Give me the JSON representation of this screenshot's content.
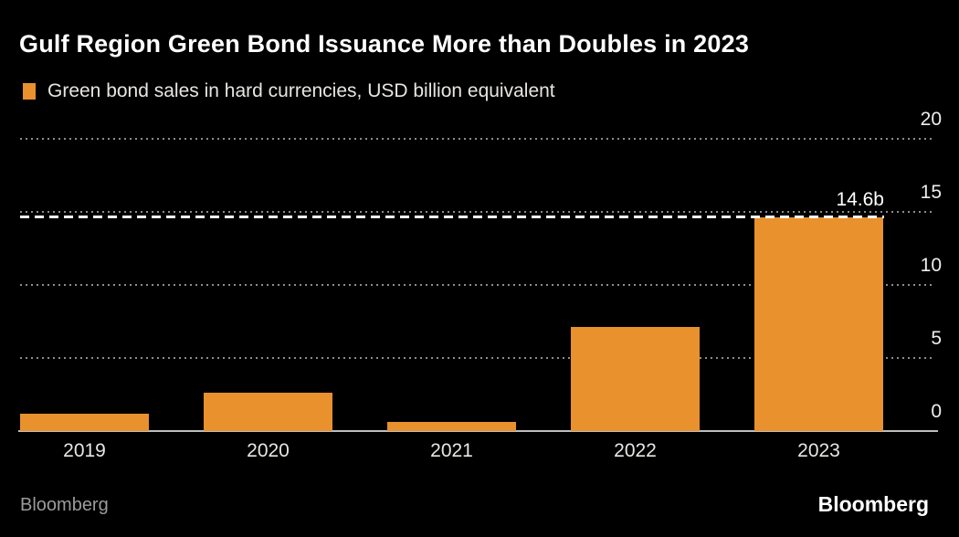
{
  "header": {
    "title": "Gulf Region Green Bond Issuance More than Doubles in 2023",
    "legend": {
      "label": "Green bond sales in hard currencies, USD billion equivalent",
      "swatch_color": "#E8912D"
    }
  },
  "chart_data": {
    "type": "bar",
    "title": "Gulf Region Green Bond Issuance More than Doubles in 2023",
    "series_label": "Green bond sales in hard currencies, USD billion equivalent",
    "categories": [
      "2019",
      "2020",
      "2021",
      "2022",
      "2023"
    ],
    "values": [
      1.2,
      2.6,
      0.6,
      7.1,
      14.6
    ],
    "xlabel": "",
    "ylabel": "",
    "ylim": [
      0,
      20
    ],
    "yticks": [
      0,
      5,
      10,
      15,
      20
    ],
    "yticks_position": "right",
    "grid": "horizontal-dotted",
    "bar_color": "#E8912D",
    "annotation": {
      "value": 14.6,
      "label": "14.6b",
      "style": "white-dashed-line"
    }
  },
  "footer": {
    "source_label": "Bloomberg",
    "brand_logo": "Bloomberg"
  },
  "colors": {
    "background": "#000000",
    "title_text": "#FFFFFF",
    "secondary_text": "#E8E6E3",
    "grid_dots": "#8C8C8C",
    "baseline": "#BDBDBD",
    "bar": "#E8912D",
    "annotation": "#FFFFFF",
    "footer_source": "#9B9B9B"
  }
}
